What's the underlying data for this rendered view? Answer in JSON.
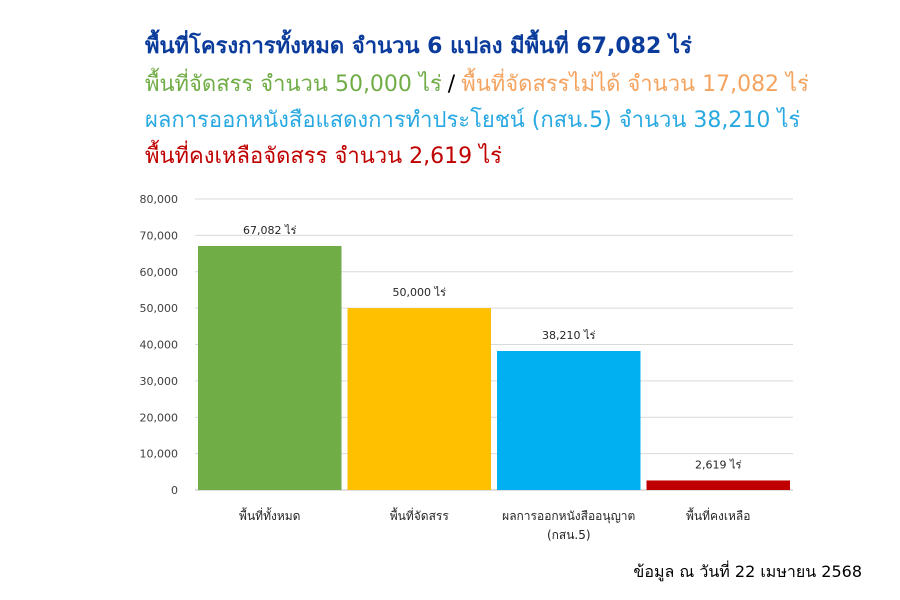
{
  "headlines": {
    "line1": "พื้นที่โครงการทั้งหมด จำนวน 6 แปลง มีพื้นที่ 67,082 ไร่",
    "line2a": "พื้นที่จัดสรร จำนวน 50,000 ไร่",
    "line2_sep": "/",
    "line2b": "พื้นที่จัดสรรไม่ได้ จำนวน 17,082 ไร่",
    "line3": "ผลการออกหนังสือแสดงการทำประโยชน์ (กสน.5) จำนวน 38,210 ไร่",
    "line4": "พื้นที่คงเหลือจัดสรร  จำนวน 2,619  ไร่"
  },
  "colors": {
    "line1": "#0b3c9c",
    "line2a": "#70ad47",
    "line2b": "#f4a460",
    "line3": "#29a9e1",
    "line4": "#c00000",
    "grid": "#d9d9d9",
    "axis_text": "#404040"
  },
  "chart_data": {
    "type": "bar",
    "categories": [
      "พื้นที่ทั้งหมด",
      "พื้นที่จัดสรร",
      "ผลการออกหนังสืออนุญาต (กสน.5)",
      "พื้นที่คงเหลือ"
    ],
    "values": [
      67082,
      50000,
      38210,
      2619
    ],
    "value_labels": [
      "67,082 ไร่",
      "50,000 ไร่",
      "38,210 ไร่",
      "2,619 ไร่"
    ],
    "bar_colors": [
      "#70ad47",
      "#ffc000",
      "#00b0f0",
      "#c00000"
    ],
    "ylim": [
      0,
      80000
    ],
    "yticks": [
      0,
      10000,
      20000,
      30000,
      40000,
      50000,
      60000,
      70000,
      80000
    ],
    "ytick_labels": [
      "0",
      "10,000",
      "20,000",
      "30,000",
      "40,000",
      "50,000",
      "60,000",
      "70,000",
      "80,000"
    ],
    "grid": true,
    "legend": "none"
  },
  "footnote": "ข้อมูล ณ วันที่ 22 เมษายน 2568"
}
